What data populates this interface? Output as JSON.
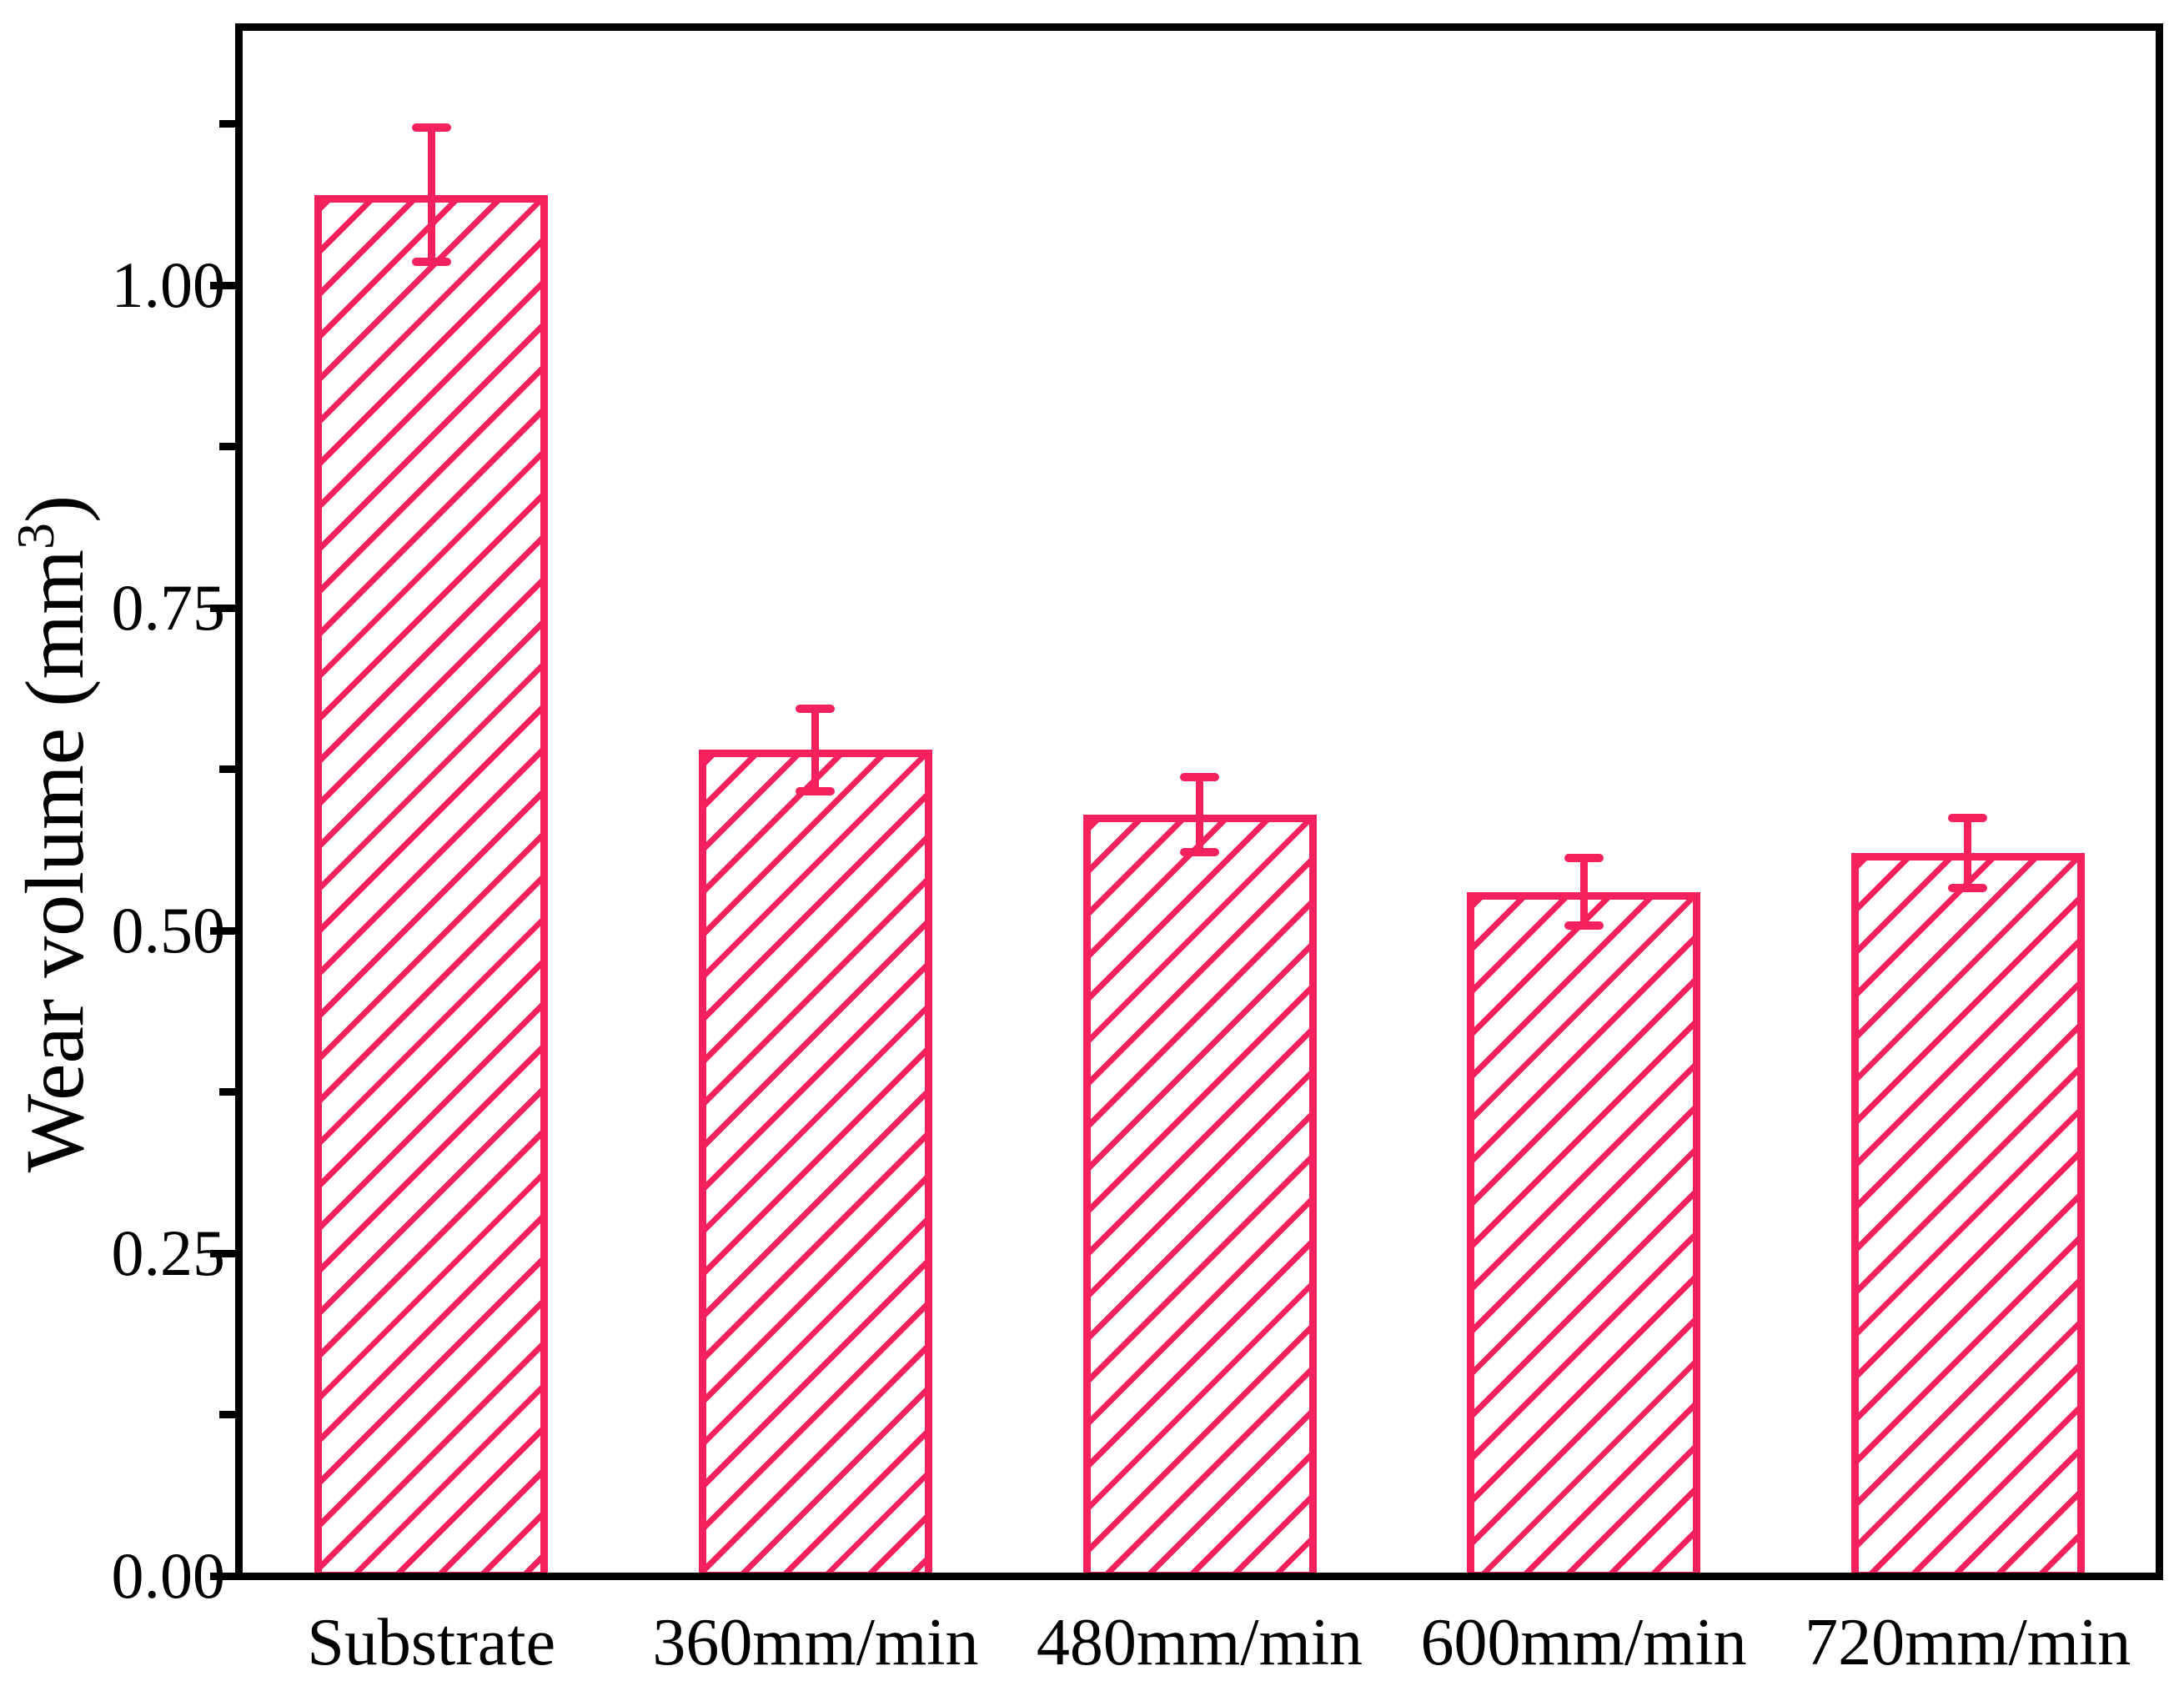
{
  "figure": {
    "background_color": "#ffffff",
    "frame_color": "#000000",
    "text_color": "#000000"
  },
  "chart_data": {
    "type": "bar",
    "title": "",
    "xlabel": "",
    "ylabel": "Wear volume (mm³)",
    "ylabel_parts": {
      "main": "Wear volume (mm",
      "sup": "3",
      "close": ")"
    },
    "categories": [
      "Substrate",
      "360mm/min",
      "480mm/min",
      "600mm/min",
      "720mm/min"
    ],
    "values": [
      1.07,
      0.64,
      0.59,
      0.53,
      0.56
    ],
    "errors": [
      0.052,
      0.032,
      0.029,
      0.026,
      0.027
    ],
    "ylim": [
      0,
      1.2
    ],
    "yticks": [
      0,
      0.25,
      0.5,
      0.75,
      1.0
    ],
    "ytick_labels": [
      "0.00",
      "0.25",
      "0.50",
      "0.75",
      "1.00"
    ],
    "minor_yticks": [
      0.125,
      0.375,
      0.625,
      0.875,
      1.125
    ],
    "grid": false,
    "legend": null,
    "bar_style": {
      "bar_color": "#F5215C",
      "fill": "#ffffff",
      "hatch": "diagonal-forward",
      "error_caps": true
    }
  }
}
